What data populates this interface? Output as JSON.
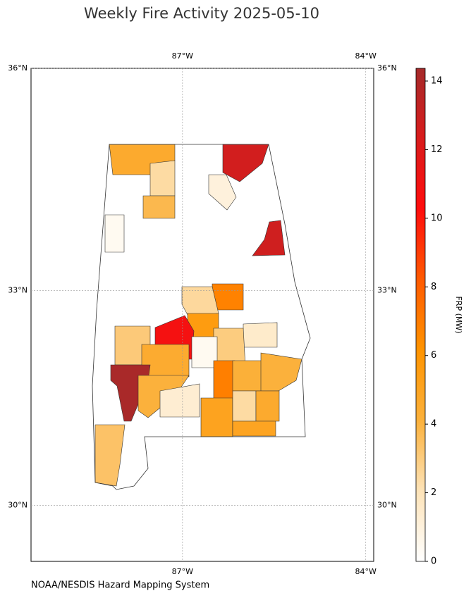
{
  "chart_data": {
    "type": "choropleth",
    "title": "Weekly Fire Activity 2025-05-10",
    "source": "NOAA/NESDIS Hazard Mapping System",
    "lonlim": [
      -89.48,
      -83.87
    ],
    "latlim": [
      29.2,
      36
    ],
    "lonticks": [
      {
        "value": -87,
        "label": "87°W"
      },
      {
        "value": -84,
        "label": "84°W"
      }
    ],
    "latticks": [
      {
        "value": 30,
        "label": "30°N"
      },
      {
        "value": 33,
        "label": "33°N"
      },
      {
        "value": 36,
        "label": "36°N"
      }
    ],
    "grid": true,
    "colorbar": {
      "label": "FRP (MW)",
      "clim": [
        0,
        14.37
      ],
      "ticks": [
        0,
        2,
        4,
        6,
        8,
        10,
        12,
        14
      ],
      "colormap": [
        "#ffffff",
        "#fde3b8",
        "#fbb13c",
        "#ff9400",
        "#ff5a00",
        "#ff0d0d",
        "#d91c1c",
        "#a52a2a"
      ]
    },
    "values": [
      4.6,
      2.4,
      3.8,
      12.6,
      1.0,
      12.7,
      0.4,
      6.8,
      2.5,
      5.6,
      1.5,
      3.0,
      10.8,
      0.4,
      3.1,
      4.5,
      14.2,
      4.1,
      1.3,
      6.9,
      4.2,
      4.1,
      5.1,
      2.4,
      4.6,
      5.0,
      3.4
    ]
  }
}
